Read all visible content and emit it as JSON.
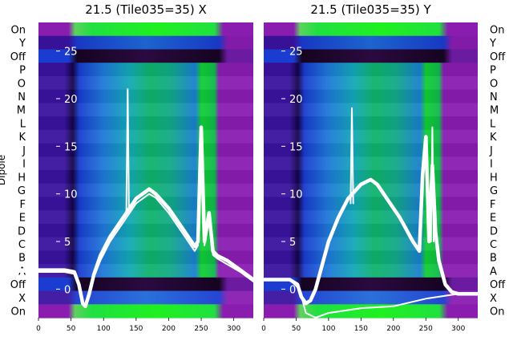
{
  "chart_data": [
    {
      "type": "heatmap",
      "title": "21.5 (Tile035=35) X",
      "ylabel": "Dipole",
      "dipole_labels": [
        "On",
        "Y",
        "Off",
        "P",
        "O",
        "N",
        "M",
        "L",
        "K",
        "J",
        "I",
        "H",
        "G",
        "F",
        "E",
        "D",
        "C",
        "B",
        "A",
        "Off",
        "X",
        "On"
      ],
      "x_ticks": [
        0,
        50,
        100,
        150,
        200,
        250,
        300
      ],
      "xlim": [
        0,
        330
      ],
      "overlay_ticks": [
        0,
        5,
        10,
        15,
        20,
        25
      ],
      "overlay_ylim": [
        -3,
        28
      ],
      "series": [
        {
          "x": [
            0,
            20,
            40,
            55,
            62,
            68,
            72,
            78,
            85,
            95,
            110,
            130,
            150,
            170,
            180,
            200,
            220,
            240,
            245,
            250,
            255,
            262,
            268,
            275,
            290,
            310,
            330
          ],
          "y": [
            2,
            2,
            2,
            1.8,
            0.5,
            -1.5,
            -1.8,
            -0.5,
            1.5,
            3.5,
            5.5,
            7.5,
            9.5,
            10.5,
            10,
            8.5,
            6.5,
            4.5,
            5,
            17,
            5,
            8,
            4,
            3.5,
            3,
            2,
            1
          ]
        },
        {
          "x": [
            0,
            20,
            40,
            55,
            62,
            68,
            72,
            78,
            85,
            95,
            110,
            130,
            150,
            170,
            180,
            200,
            220,
            240,
            245,
            250,
            255,
            262,
            268,
            275,
            290,
            310,
            330
          ],
          "y": [
            1.8,
            1.8,
            1.8,
            1.6,
            0.3,
            -1.6,
            -1.9,
            -0.6,
            1.2,
            3,
            5,
            7,
            9,
            10,
            9.6,
            8,
            6,
            4,
            4.6,
            16,
            4.6,
            7.5,
            3.6,
            3.2,
            2.6,
            1.8,
            0.8
          ]
        },
        {
          "x": [
            135,
            137,
            139
          ],
          "y": [
            8,
            21,
            8
          ]
        }
      ]
    },
    {
      "type": "heatmap",
      "title": "21.5 (Tile035=35) Y",
      "dipole_labels": [
        "On",
        "Y",
        "Off",
        "P",
        "O",
        "N",
        "M",
        "L",
        "K",
        "J",
        "I",
        "H",
        "G",
        "F",
        "E",
        "D",
        "C",
        "B",
        "A",
        "Off",
        "X",
        "On"
      ],
      "x_ticks": [
        0,
        50,
        100,
        150,
        200,
        250,
        300
      ],
      "xlim": [
        0,
        330
      ],
      "overlay_ticks": [
        0,
        5,
        10,
        15,
        20,
        25
      ],
      "overlay_ylim": [
        -3,
        28
      ],
      "series": [
        {
          "x": [
            0,
            20,
            40,
            52,
            58,
            65,
            72,
            80,
            90,
            100,
            115,
            130,
            150,
            165,
            175,
            190,
            210,
            230,
            240,
            245,
            250,
            255,
            260,
            265,
            270,
            280,
            290,
            300,
            330
          ],
          "y": [
            1,
            1,
            1,
            0.5,
            -0.8,
            -1.5,
            -1.2,
            0,
            2.5,
            5,
            7.5,
            9.5,
            11,
            11.5,
            11,
            9.5,
            7.5,
            5,
            4,
            12,
            16,
            5,
            13,
            6,
            3,
            0.5,
            -0.3,
            -0.5,
            -0.5
          ]
        },
        {
          "x": [
            0,
            40,
            55,
            65,
            80,
            100,
            150,
            200,
            250,
            300,
            330
          ],
          "y": [
            1,
            1,
            0,
            -2.5,
            -3,
            -2.5,
            -2,
            -1.8,
            -1,
            -0.5,
            -0.5
          ]
        },
        {
          "x": [
            134,
            136,
            138
          ],
          "y": [
            9,
            19,
            9
          ]
        },
        {
          "x": [
            258,
            260,
            262
          ],
          "y": [
            5,
            17,
            5
          ]
        }
      ]
    }
  ]
}
